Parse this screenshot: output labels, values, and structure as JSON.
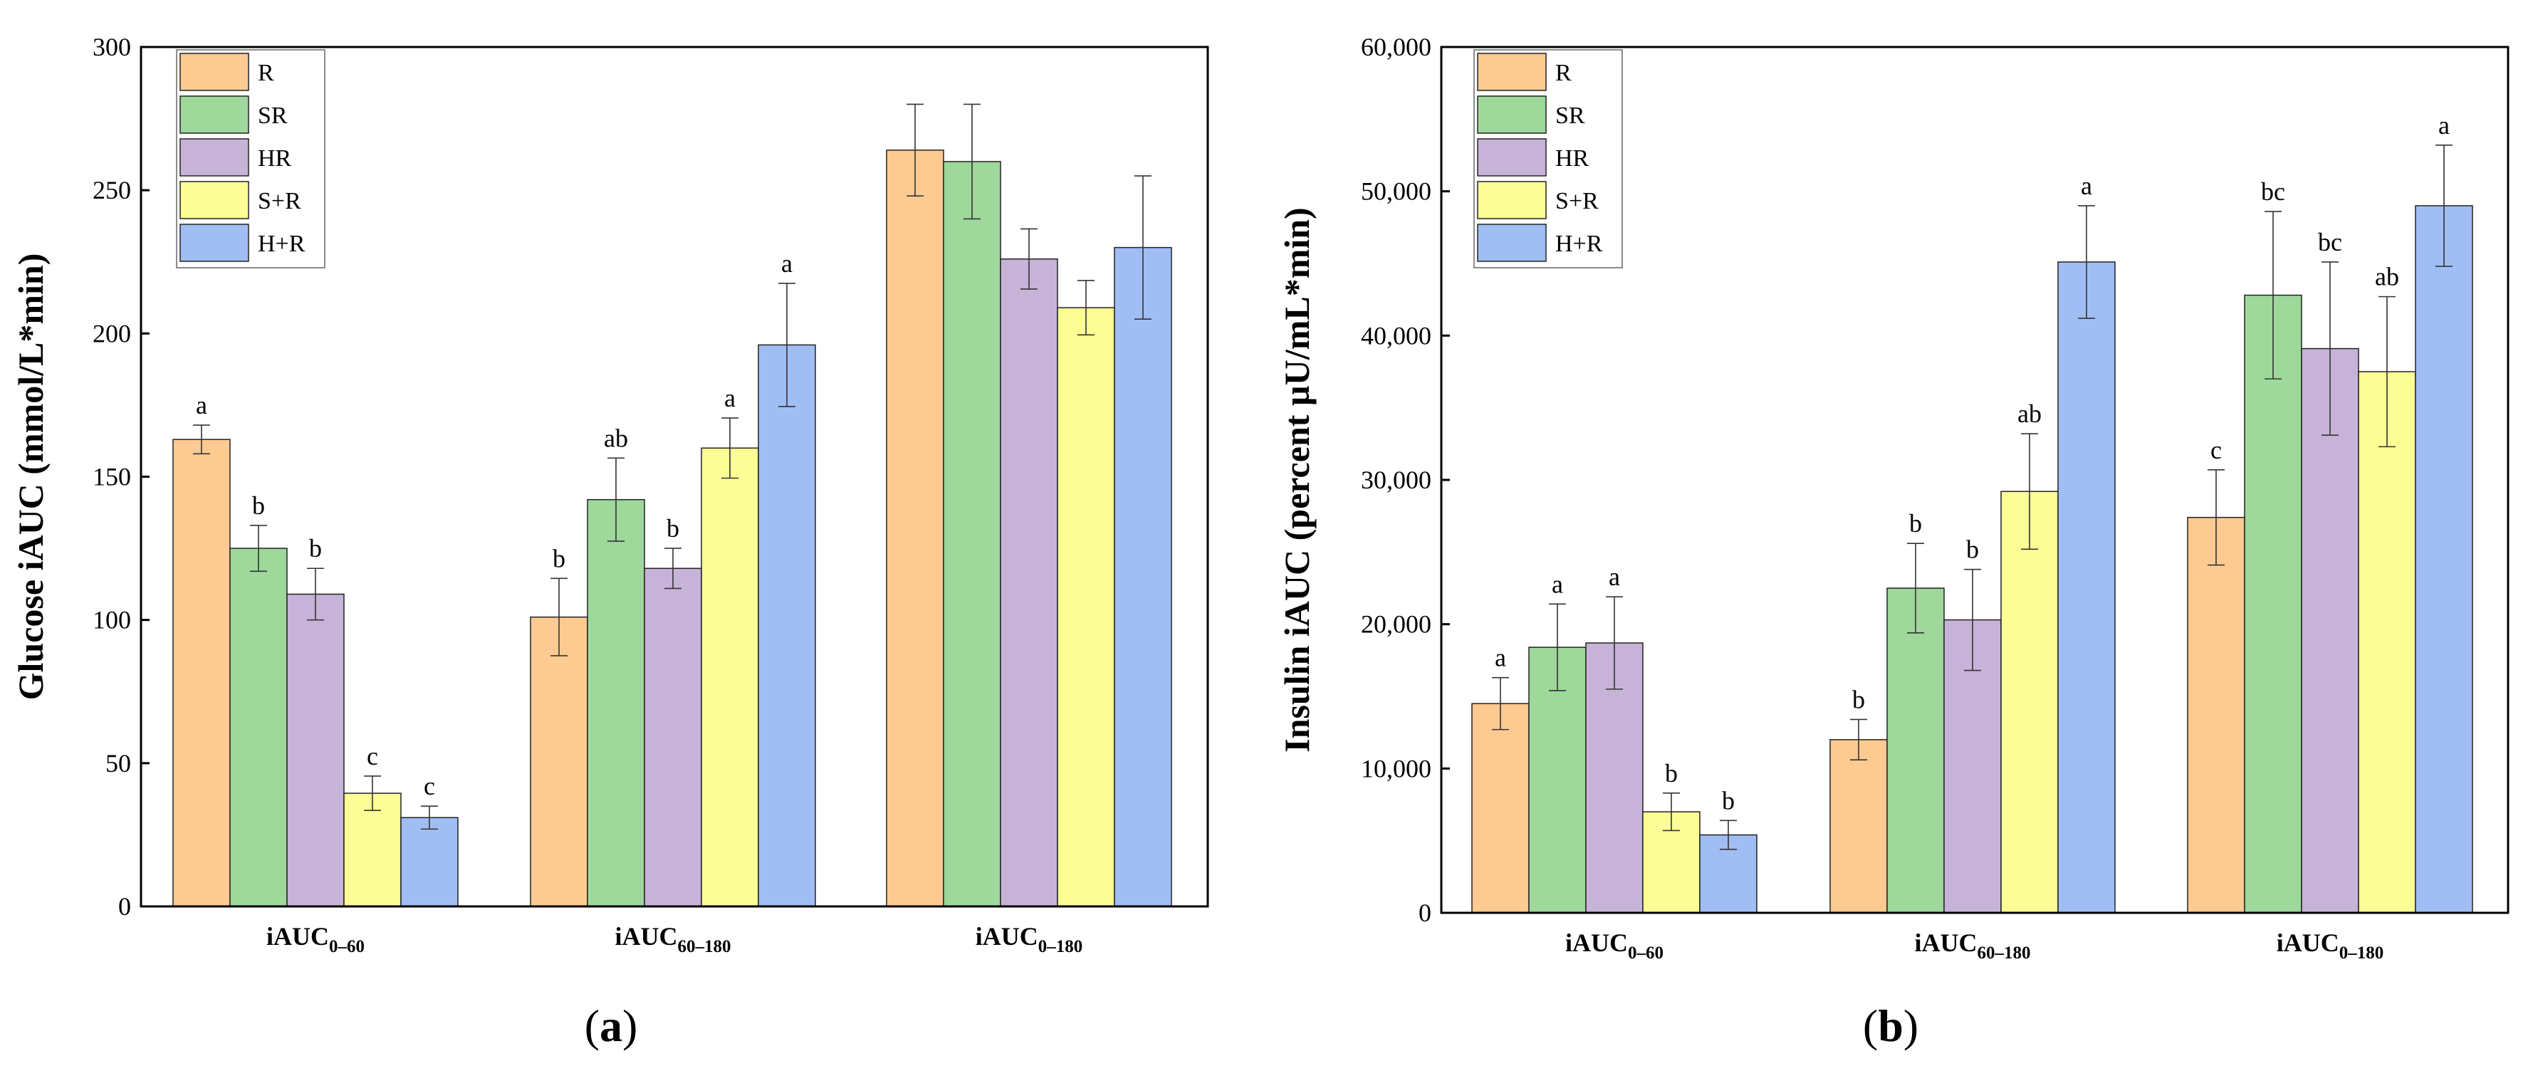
{
  "chart_data": [
    {
      "type": "bar",
      "panel_label": "a",
      "ylabel": "Glucose iAUC (mmol/L*min)",
      "ylim": [
        0,
        300
      ],
      "yticks": [
        0,
        50,
        100,
        150,
        200,
        250,
        300
      ],
      "ytick_labels": [
        "0",
        "50",
        "100",
        "150",
        "200",
        "250",
        "300"
      ],
      "categories": [
        {
          "main": "iAUC",
          "sub": "0–60"
        },
        {
          "main": "iAUC",
          "sub": "60–180"
        },
        {
          "main": "iAUC",
          "sub": "0–180"
        }
      ],
      "legend_position": "top-left",
      "series": [
        {
          "name": "R",
          "color": "#FDCA92",
          "values": [
            163,
            101,
            264
          ],
          "errors": [
            5,
            13.5,
            16
          ],
          "labels": [
            "a",
            "b",
            ""
          ]
        },
        {
          "name": "SR",
          "color": "#9ED89B",
          "values": [
            125,
            142,
            260
          ],
          "errors": [
            8,
            14.5,
            20
          ],
          "labels": [
            "b",
            "ab",
            ""
          ]
        },
        {
          "name": "HR",
          "color": "#C7B3D8",
          "values": [
            109,
            118,
            226
          ],
          "errors": [
            9,
            7,
            10.5
          ],
          "labels": [
            "b",
            "b",
            ""
          ]
        },
        {
          "name": "S+R",
          "color": "#FDFD96",
          "values": [
            39.5,
            160,
            209
          ],
          "errors": [
            6,
            10.5,
            9.5
          ],
          "labels": [
            "c",
            "a",
            ""
          ]
        },
        {
          "name": "H+R",
          "color": "#A1BEF4",
          "values": [
            31,
            196,
            230
          ],
          "errors": [
            4,
            21.5,
            25
          ],
          "labels": [
            "c",
            "a",
            ""
          ]
        }
      ]
    },
    {
      "type": "bar",
      "panel_label": "b",
      "ylabel": "Insulin iAUC (percent µU/mL*min)",
      "ylim": [
        0,
        60000
      ],
      "yticks": [
        0,
        10000,
        20000,
        30000,
        40000,
        50000,
        60000
      ],
      "ytick_labels": [
        "0",
        "10,000",
        "20,000",
        "30,000",
        "40,000",
        "50,000",
        "60,000"
      ],
      "categories": [
        {
          "main": "iAUC",
          "sub": "0–60"
        },
        {
          "main": "iAUC",
          "sub": "60–180"
        },
        {
          "main": "iAUC",
          "sub": "0–180"
        }
      ],
      "legend_position": "top-left",
      "series": [
        {
          "name": "R",
          "color": "#FDCA92",
          "values": [
            14500,
            12000,
            27400
          ],
          "errors": [
            1800,
            1400,
            3300
          ],
          "labels": [
            "a",
            "b",
            "c"
          ]
        },
        {
          "name": "SR",
          "color": "#9ED89B",
          "values": [
            18400,
            22500,
            42800
          ],
          "errors": [
            3000,
            3100,
            5800
          ],
          "labels": [
            "a",
            "b",
            "bc"
          ]
        },
        {
          "name": "HR",
          "color": "#C7B3D8",
          "values": [
            18700,
            20300,
            39100
          ],
          "errors": [
            3200,
            3500,
            6000
          ],
          "labels": [
            "a",
            "b",
            "bc"
          ]
        },
        {
          "name": "S+R",
          "color": "#FDFD96",
          "values": [
            7000,
            29200,
            37500
          ],
          "errors": [
            1300,
            4000,
            5200
          ],
          "labels": [
            "b",
            "ab",
            "ab"
          ]
        },
        {
          "name": "H+R",
          "color": "#A1BEF4",
          "values": [
            5400,
            45100,
            49000
          ],
          "errors": [
            1000,
            3900,
            4200
          ],
          "labels": [
            "b",
            "a",
            "a"
          ]
        }
      ]
    }
  ]
}
